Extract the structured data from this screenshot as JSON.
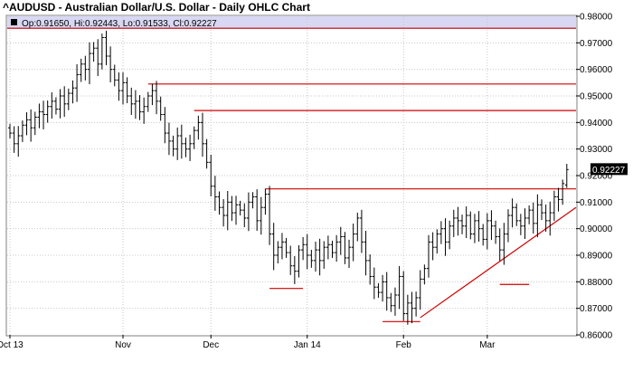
{
  "title": "^AUDUSD - Australian Dollar/U.S. Dollar - Daily OHLC Chart",
  "ohlc_readout": "Op:0.91650, Hi:0.92443, Lo:0.91533, Cl:0.92227",
  "last_price_label": "0.92227",
  "colors": {
    "header_band": "#d8d8f4",
    "bars": "#000000",
    "trendlines": "#d00000",
    "grid": "#c8c8c8",
    "last_label_bg": "#000000"
  },
  "chart_data": {
    "type": "ohlc",
    "title": "^AUDUSD - Australian Dollar/U.S. Dollar - Daily OHLC Chart",
    "xlabel": "",
    "ylabel": "",
    "ylim": [
      0.86,
      0.98
    ],
    "y_ticks": [
      "0.86000",
      "0.87000",
      "0.88000",
      "0.89000",
      "0.90000",
      "0.91000",
      "0.92000",
      "0.93000",
      "0.94000",
      "0.95000",
      "0.96000",
      "0.97000",
      "0.98000"
    ],
    "x_ticks": [
      {
        "label": "Oct 13",
        "index": 0
      },
      {
        "label": "Nov",
        "index": 27
      },
      {
        "label": "Dec",
        "index": 48
      },
      {
        "label": "Jan 14",
        "index": 71
      },
      {
        "label": "Feb",
        "index": 94
      },
      {
        "label": "Mar",
        "index": 114
      }
    ],
    "grid": true,
    "last": {
      "open": 0.9165,
      "high": 0.92443,
      "low": 0.91533,
      "close": 0.92227
    },
    "closes": [
      0.936,
      0.932,
      0.935,
      0.939,
      0.941,
      0.938,
      0.942,
      0.944,
      0.943,
      0.946,
      0.948,
      0.945,
      0.95,
      0.947,
      0.951,
      0.953,
      0.958,
      0.962,
      0.96,
      0.966,
      0.968,
      0.962,
      0.972,
      0.965,
      0.96,
      0.956,
      0.952,
      0.955,
      0.95,
      0.947,
      0.948,
      0.944,
      0.946,
      0.95,
      0.952,
      0.948,
      0.943,
      0.936,
      0.933,
      0.93,
      0.935,
      0.932,
      0.93,
      0.932,
      0.937,
      0.94,
      0.932,
      0.925,
      0.916,
      0.912,
      0.908,
      0.905,
      0.91,
      0.906,
      0.909,
      0.907,
      0.904,
      0.91,
      0.912,
      0.903,
      0.908,
      0.913,
      0.898,
      0.89,
      0.893,
      0.895,
      0.891,
      0.886,
      0.884,
      0.892,
      0.894,
      0.89,
      0.888,
      0.892,
      0.888,
      0.893,
      0.894,
      0.891,
      0.895,
      0.897,
      0.889,
      0.893,
      0.898,
      0.904,
      0.895,
      0.888,
      0.882,
      0.878,
      0.876,
      0.88,
      0.874,
      0.871,
      0.875,
      0.882,
      0.868,
      0.872,
      0.87,
      0.874,
      0.881,
      0.885,
      0.895,
      0.893,
      0.898,
      0.9,
      0.895,
      0.901,
      0.904,
      0.903,
      0.901,
      0.905,
      0.898,
      0.903,
      0.9,
      0.896,
      0.903,
      0.901,
      0.897,
      0.892,
      0.898,
      0.905,
      0.908,
      0.903,
      0.901,
      0.904,
      0.907,
      0.902,
      0.909,
      0.906,
      0.903,
      0.906,
      0.912,
      0.911,
      0.917,
      0.922
    ],
    "annotations": [
      {
        "type": "horizontal-line",
        "y": 0.9755,
        "x_from": 0,
        "x_to": 136
      },
      {
        "type": "horizontal-line",
        "y": 0.9545,
        "x_from": 33,
        "x_to": 136
      },
      {
        "type": "horizontal-line",
        "y": 0.9445,
        "x_from": 44,
        "x_to": 136
      },
      {
        "type": "horizontal-line",
        "y": 0.915,
        "x_from": 61,
        "x_to": 136
      },
      {
        "type": "horizontal-line",
        "y": 0.8775,
        "x_from": 62,
        "x_to": 70
      },
      {
        "type": "horizontal-line",
        "y": 0.865,
        "x_from": 89,
        "x_to": 98
      },
      {
        "type": "horizontal-line",
        "y": 0.879,
        "x_from": 117,
        "x_to": 124
      },
      {
        "type": "trend-line",
        "from": {
          "index": 98,
          "y": 0.8665
        },
        "to": {
          "index": 136,
          "y": 0.908
        }
      }
    ]
  }
}
